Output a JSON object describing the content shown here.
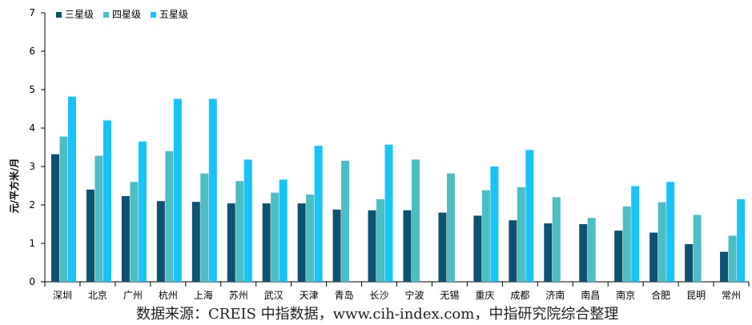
{
  "chart_data": {
    "type": "bar",
    "title": "",
    "xlabel": "",
    "ylabel": "元/平方米/月",
    "ylim": [
      0,
      7
    ],
    "yticks": [
      0,
      1,
      2,
      3,
      4,
      5,
      6,
      7
    ],
    "grid": false,
    "legend_position": "top-left",
    "categories": [
      "深圳",
      "北京",
      "广州",
      "杭州",
      "上海",
      "苏州",
      "武汉",
      "天津",
      "青岛",
      "长沙",
      "宁波",
      "无锡",
      "重庆",
      "成都",
      "济南",
      "南昌",
      "南京",
      "合肥",
      "昆明",
      "常州"
    ],
    "series": [
      {
        "name": "三星级",
        "color": "#0d5271",
        "values": [
          3.32,
          2.4,
          2.23,
          2.1,
          2.08,
          2.04,
          2.04,
          2.04,
          1.88,
          1.86,
          1.86,
          1.8,
          1.72,
          1.6,
          1.52,
          1.5,
          1.33,
          1.28,
          0.98,
          0.78
        ]
      },
      {
        "name": "四星级",
        "color": "#4dbdc4",
        "values": [
          3.78,
          3.28,
          2.6,
          3.4,
          2.82,
          2.62,
          2.32,
          2.27,
          3.15,
          2.15,
          3.18,
          2.82,
          2.38,
          2.46,
          2.2,
          1.66,
          1.96,
          2.07,
          1.74,
          1.2
        ]
      },
      {
        "name": "五星级",
        "color": "#17c3f7",
        "values": [
          4.82,
          4.2,
          3.65,
          4.76,
          4.76,
          3.18,
          2.66,
          3.54,
          null,
          3.57,
          null,
          null,
          3.0,
          3.43,
          null,
          null,
          2.49,
          2.6,
          null,
          2.15
        ]
      }
    ]
  },
  "source_note": "数据来源：CREIS 中指数据，www.cih-index.com，中指研究院综合整理"
}
